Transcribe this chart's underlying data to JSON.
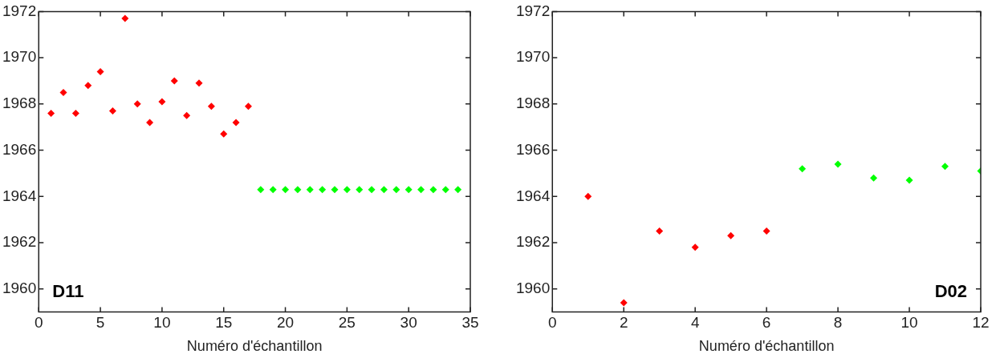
{
  "chart_data": [
    {
      "type": "scatter",
      "xlabel": "Numéro d'échantillon",
      "annotations": [
        "D11"
      ],
      "xlim": [
        0,
        35
      ],
      "xticks": [
        0,
        5,
        10,
        15,
        20,
        25,
        30,
        35
      ],
      "ylim": [
        1959,
        1972
      ],
      "yticks": [
        1960,
        1962,
        1964,
        1966,
        1968,
        1970,
        1972
      ],
      "grid": false,
      "legend": false,
      "marker": "diamond",
      "series": [
        {
          "color": "#ff0000",
          "x": [
            1,
            2,
            3,
            4,
            5,
            6,
            7,
            8,
            9,
            10,
            11,
            12,
            13,
            14,
            15,
            16,
            17
          ],
          "values": [
            1967.6,
            1968.5,
            1967.6,
            1968.8,
            1969.4,
            1967.7,
            1971.7,
            1968.0,
            1967.2,
            1968.1,
            1969.0,
            1967.5,
            1968.9,
            1967.9,
            1966.7,
            1967.2,
            1967.9
          ]
        },
        {
          "color": "#00ff00",
          "x": [
            18,
            19,
            20,
            21,
            22,
            23,
            24,
            25,
            26,
            27,
            28,
            29,
            30,
            31,
            32,
            33,
            34
          ],
          "values": [
            1964.3,
            1964.3,
            1964.3,
            1964.3,
            1964.3,
            1964.3,
            1964.3,
            1964.3,
            1964.3,
            1964.3,
            1964.3,
            1964.3,
            1964.3,
            1964.3,
            1964.3,
            1964.3,
            1964.3
          ]
        }
      ]
    },
    {
      "type": "scatter",
      "xlabel": "Numéro d'échantillon",
      "annotations": [
        "D02"
      ],
      "xlim": [
        0,
        12
      ],
      "xticks": [
        0,
        2,
        4,
        6,
        8,
        10,
        12
      ],
      "ylim": [
        1959,
        1972
      ],
      "yticks": [
        1960,
        1962,
        1964,
        1966,
        1968,
        1970,
        1972
      ],
      "grid": false,
      "legend": false,
      "marker": "diamond",
      "series": [
        {
          "color": "#ff0000",
          "x": [
            1,
            2,
            3,
            4,
            5,
            6
          ],
          "values": [
            1964.0,
            1959.4,
            1962.5,
            1961.8,
            1962.3,
            1962.5
          ]
        },
        {
          "color": "#00ff00",
          "x": [
            7,
            8,
            9,
            10,
            11,
            12
          ],
          "values": [
            1965.2,
            1965.4,
            1964.8,
            1964.7,
            1965.3,
            1965.1
          ]
        }
      ]
    }
  ]
}
